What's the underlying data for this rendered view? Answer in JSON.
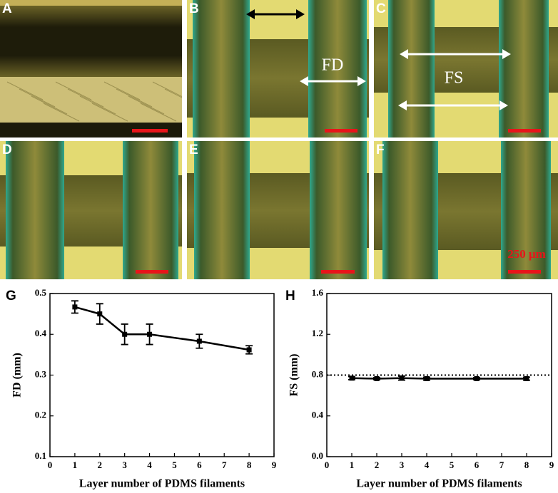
{
  "panels": {
    "labels": [
      "A",
      "B",
      "C",
      "D",
      "E",
      "F"
    ],
    "fd_label": "FD",
    "fs_label": "FS",
    "scale_label": "250 μm"
  },
  "chart_data": [
    {
      "type": "line",
      "panel_label": "G",
      "xlabel": "Layer number of PDMS filaments",
      "ylabel": "FD (mm)",
      "x": [
        1,
        2,
        3,
        4,
        6,
        8
      ],
      "values": [
        0.467,
        0.45,
        0.4,
        0.4,
        0.383,
        0.362
      ],
      "errors": [
        0.015,
        0.025,
        0.025,
        0.025,
        0.017,
        0.01
      ],
      "color": "#000000",
      "xlim": [
        0,
        9
      ],
      "xticks": [
        0,
        1,
        2,
        3,
        4,
        5,
        6,
        7,
        8,
        9
      ],
      "ylim": [
        0.1,
        0.5
      ],
      "yticks": [
        0.1,
        0.2,
        0.3,
        0.4,
        0.5
      ]
    },
    {
      "type": "line",
      "panel_label": "H",
      "xlabel": "Layer number of PDMS filaments",
      "ylabel": "FS (mm)",
      "x": [
        1,
        2,
        3,
        4,
        6,
        8
      ],
      "values": [
        0.77,
        0.765,
        0.77,
        0.765,
        0.765,
        0.765
      ],
      "errors": [
        0.015,
        0.01,
        0.02,
        0.015,
        0.01,
        0.015
      ],
      "color": "#000000",
      "reference_line": 0.8,
      "xlim": [
        0,
        9
      ],
      "xticks": [
        0,
        1,
        2,
        3,
        4,
        5,
        6,
        7,
        8,
        9
      ],
      "ylim": [
        0,
        1.6
      ],
      "yticks": [
        {
          "value": 0,
          "label": "0.0"
        },
        0.4,
        0.8,
        1.2,
        1.6
      ]
    }
  ]
}
